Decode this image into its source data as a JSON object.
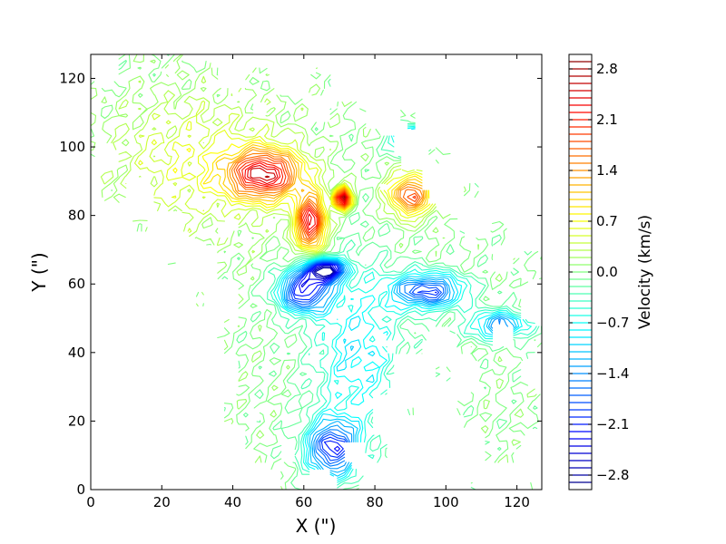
{
  "chart_data": {
    "type": "contour",
    "title": "",
    "xlabel": "X (\")",
    "ylabel": "Y (\")",
    "xlim": [
      0,
      127
    ],
    "ylim": [
      0,
      127
    ],
    "xticks": [
      0,
      20,
      40,
      60,
      80,
      100,
      120
    ],
    "yticks": [
      0,
      20,
      40,
      60,
      80,
      100,
      120
    ],
    "grid": false,
    "colormap": "jet",
    "colorbar": {
      "label": "Velocity (km/s)",
      "vmin": -3.0,
      "vmax": 3.0,
      "tick_values": [
        -2.8,
        -2.1,
        -1.4,
        -0.7,
        0.0,
        0.7,
        1.4,
        2.1,
        2.8
      ],
      "tick_labels": [
        "−2.8",
        "−2.1",
        "−1.4",
        "−0.7",
        "0.0",
        "0.7",
        "1.4",
        "2.1",
        "2.8"
      ],
      "level_step": 0.1
    },
    "features": [
      {
        "kind": "redshifted",
        "x": 49,
        "y": 92,
        "vmax": 2.4
      },
      {
        "kind": "redshifted",
        "x": 62,
        "y": 78,
        "vmax": 2.5
      },
      {
        "kind": "redshifted",
        "x": 71,
        "y": 85,
        "vmax": 3.0
      },
      {
        "kind": "redshifted",
        "x": 90,
        "y": 86,
        "vmax": 1.9
      },
      {
        "kind": "blueshifted",
        "x": 66,
        "y": 64,
        "vmin": -3.0
      },
      {
        "kind": "blueshifted",
        "x": 60,
        "y": 58,
        "vmin": -2.3
      },
      {
        "kind": "blueshifted",
        "x": 68,
        "y": 12,
        "vmin": -2.1
      },
      {
        "kind": "blueshifted",
        "x": 95,
        "y": 58,
        "vmin": -2.0
      },
      {
        "kind": "blueshifted",
        "x": 90,
        "y": 102,
        "vmin": -1.8
      },
      {
        "kind": "blueshifted",
        "x": 115,
        "y": 48,
        "vmin": -1.5
      }
    ]
  }
}
